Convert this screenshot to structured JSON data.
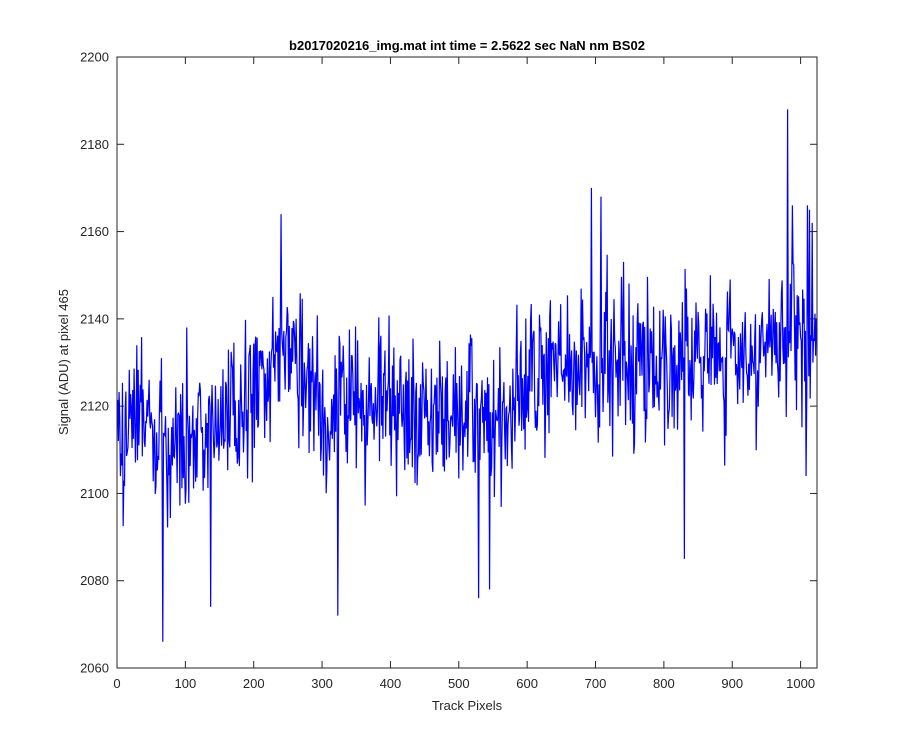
{
  "chart_data": {
    "type": "line",
    "title": "b2017020216_img.mat int time = 2.5622 sec  NaN nm BS02",
    "xlabel": "Track Pixels",
    "ylabel": "Signal (ADU) at pixel 465",
    "xlim": [
      0,
      1024
    ],
    "ylim": [
      2060,
      2200
    ],
    "x_ticks": [
      0,
      100,
      200,
      300,
      400,
      500,
      600,
      700,
      800,
      900,
      1000
    ],
    "y_ticks": [
      2060,
      2080,
      2100,
      2120,
      2140,
      2160,
      2180,
      2200
    ],
    "grid": false,
    "legend": "none",
    "series_color": "#0000ff",
    "series": [
      {
        "x_start": 1,
        "x_step": 1,
        "count": 1024,
        "trend_anchors": [
          [
            0,
            2115
          ],
          [
            100,
            2114
          ],
          [
            150,
            2116
          ],
          [
            200,
            2123
          ],
          [
            240,
            2133
          ],
          [
            300,
            2120
          ],
          [
            400,
            2121
          ],
          [
            500,
            2117
          ],
          [
            560,
            2116
          ],
          [
            600,
            2126
          ],
          [
            700,
            2130
          ],
          [
            800,
            2131
          ],
          [
            900,
            2132
          ],
          [
            960,
            2133
          ],
          [
            1024,
            2136
          ]
        ],
        "noise_amplitude": 12,
        "notable_points": [
          [
            67,
            2066
          ],
          [
            137,
            2074
          ],
          [
            323,
            2072
          ],
          [
            529,
            2076
          ],
          [
            545,
            2078
          ],
          [
            694,
            2170
          ],
          [
            708,
            2168
          ],
          [
            830,
            2085
          ],
          [
            981,
            2188
          ],
          [
            988,
            2166
          ],
          [
            1008,
            2104
          ],
          [
            1010,
            2166
          ],
          [
            1013,
            2165
          ],
          [
            1017,
            2162
          ],
          [
            240,
            2164
          ]
        ]
      }
    ]
  }
}
